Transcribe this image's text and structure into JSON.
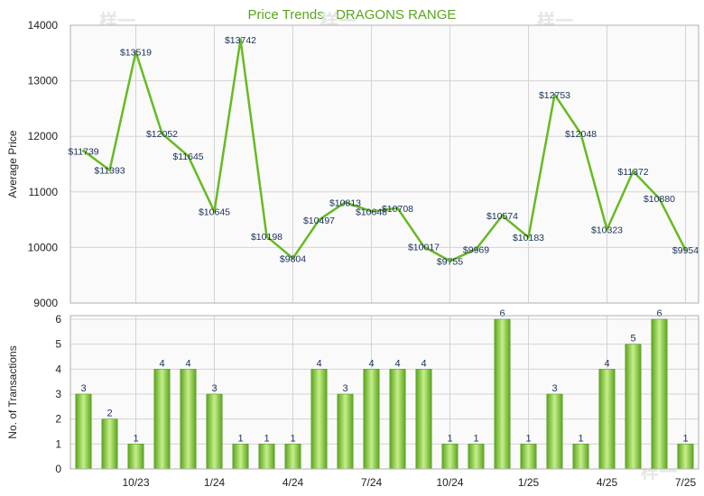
{
  "chart_data": [
    {
      "type": "line",
      "title": "Price Trends - DRAGONS RANGE",
      "ylabel": "Average Price",
      "xlabel": "",
      "ylim": [
        9000,
        14000
      ],
      "yticks": [
        "9000",
        "10000",
        "11000",
        "12000",
        "13000",
        "14000"
      ],
      "grid": true,
      "colors": {
        "line": "#66bb22",
        "grid": "#d4d4d4",
        "plot_bg": "#fafafa"
      },
      "series": [
        {
          "values": [
            11739,
            11393,
            13519,
            12052,
            11645,
            10645,
            13742,
            10198,
            9804,
            10497,
            10813,
            10648,
            10708,
            10017,
            9755,
            9969,
            10574,
            10183,
            12753,
            12048,
            10323,
            11372,
            10880,
            9954
          ],
          "labels": [
            "$11739",
            "$11393",
            "$13519",
            "$12052",
            "$11645",
            "$10645",
            "$13742",
            "$10198",
            "$9804",
            "$10497",
            "$10813",
            "$10648",
            "$10708",
            "$10017",
            "$9755",
            "$9969",
            "$10574",
            "$10183",
            "$12753",
            "$12048",
            "$10323",
            "$11372",
            "$10880",
            "$9954"
          ]
        }
      ]
    },
    {
      "type": "bar",
      "ylabel": "No. of Transactions",
      "xlabel": "",
      "ylim": [
        0,
        6
      ],
      "yticks": [
        "0",
        "1",
        "2",
        "3",
        "4",
        "5",
        "6"
      ],
      "grid": true,
      "colors": {
        "bar_dark": "#5aa51e",
        "bar_light": "#c6ef8a",
        "grid": "#d4d4d4",
        "plot_bg": "#fafafa"
      },
      "values": [
        3,
        2,
        1,
        4,
        4,
        3,
        1,
        1,
        1,
        4,
        3,
        4,
        4,
        4,
        1,
        1,
        6,
        1,
        3,
        1,
        4,
        5,
        6,
        1
      ],
      "labels": [
        "3",
        "2",
        "1",
        "4",
        "4",
        "3",
        "1",
        "1",
        "1",
        "4",
        "3",
        "4",
        "4",
        "4",
        "1",
        "1",
        "6",
        "1",
        "3",
        "1",
        "4",
        "5",
        "6",
        "1"
      ],
      "xticks": [
        {
          "index": 2,
          "label": "10/23"
        },
        {
          "index": 5,
          "label": "1/24"
        },
        {
          "index": 8,
          "label": "4/24"
        },
        {
          "index": 11,
          "label": "7/24"
        },
        {
          "index": 14,
          "label": "10/24"
        },
        {
          "index": 17,
          "label": "1/25"
        },
        {
          "index": 20,
          "label": "4/25"
        },
        {
          "index": 23,
          "label": "7/25"
        }
      ]
    }
  ]
}
